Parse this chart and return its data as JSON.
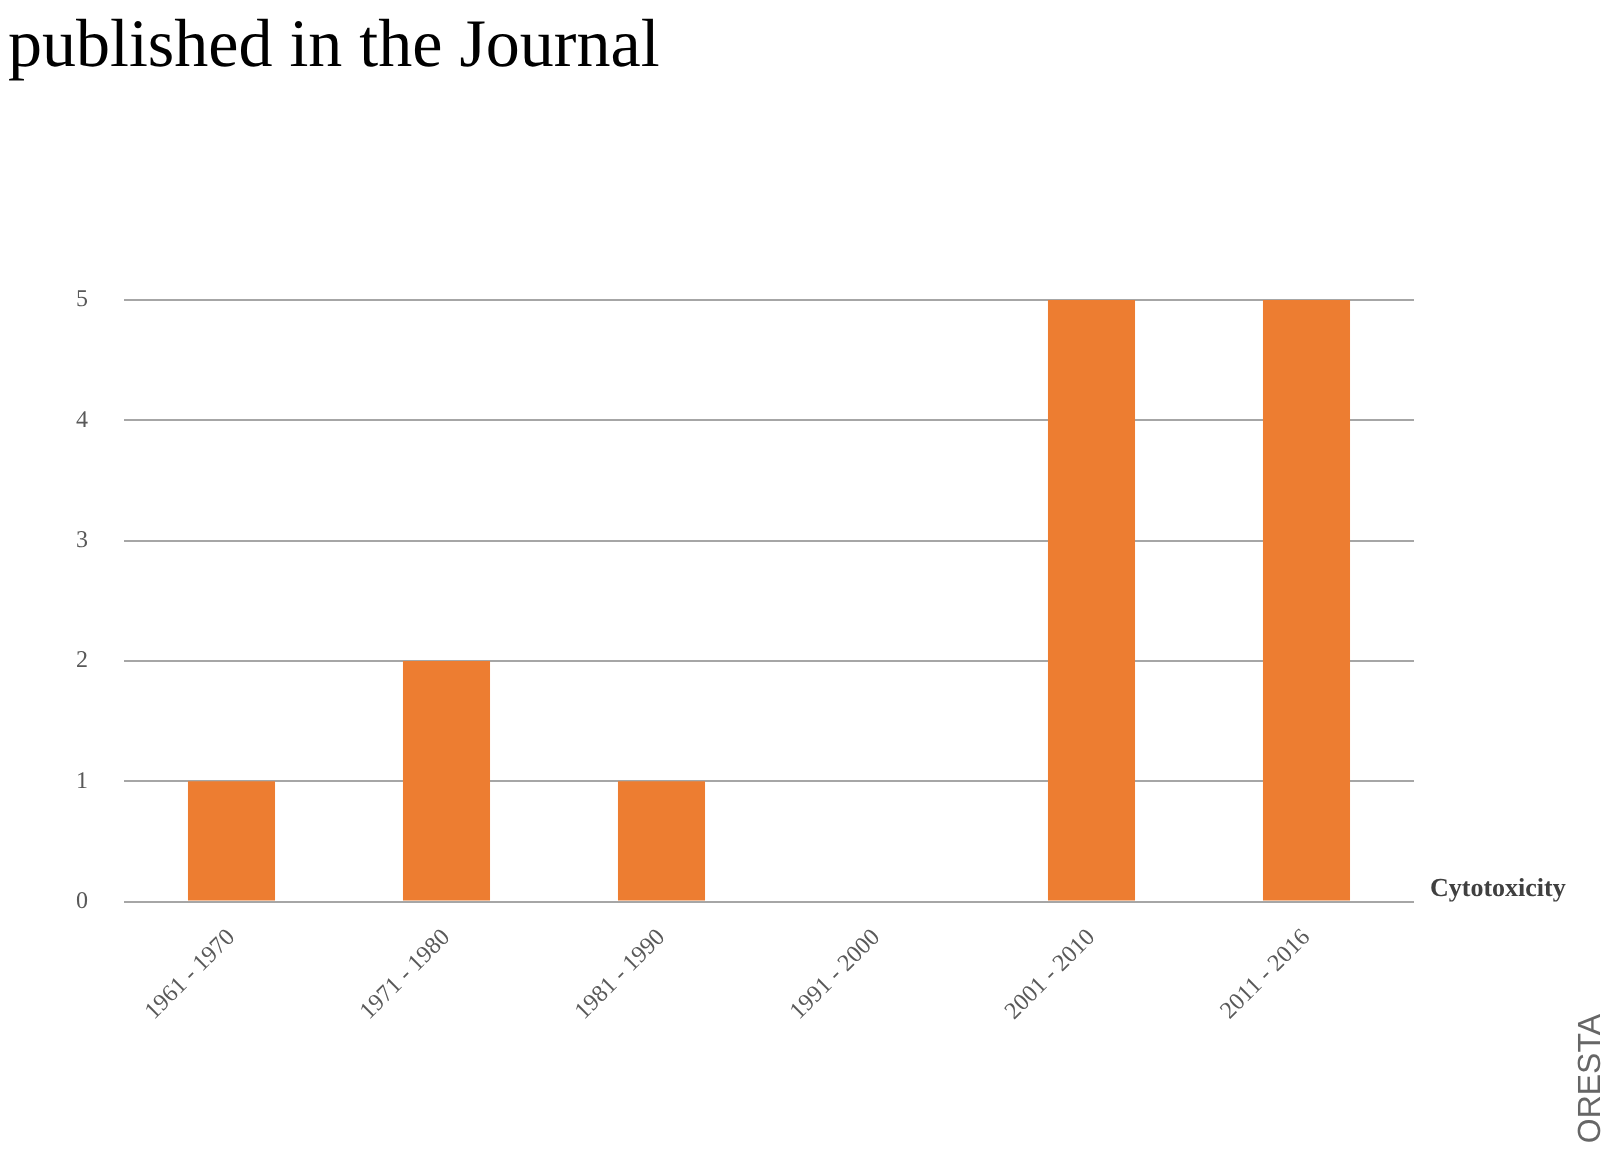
{
  "chart_data": {
    "type": "bar",
    "title": "published in the Journal",
    "categories": [
      "1961 - 1970",
      "1971 - 1980",
      "1981 - 1990",
      "1991 - 2000",
      "2001 - 2010",
      "2011 - 2016"
    ],
    "series": [
      {
        "name": "Cytotoxicity",
        "color": "#ed7d31",
        "values": [
          1,
          2,
          1,
          0,
          5,
          5
        ]
      }
    ],
    "ylim": [
      0,
      5
    ],
    "yticks": [
      0,
      1,
      2,
      3,
      4,
      5
    ],
    "grid": "y",
    "annotations": [
      "ORESTA"
    ]
  }
}
